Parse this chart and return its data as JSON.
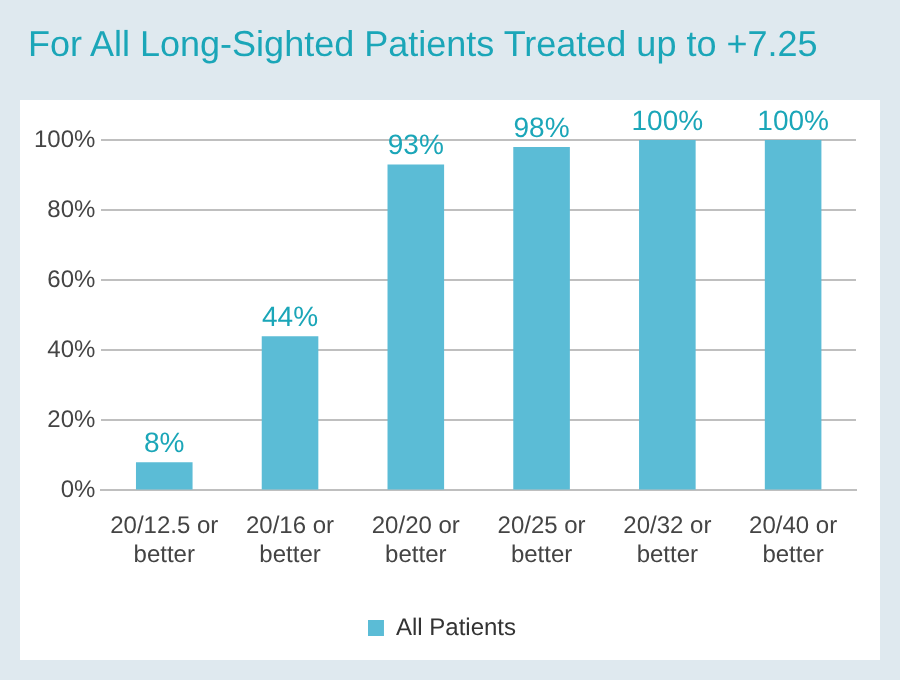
{
  "chart_data": {
    "type": "bar",
    "title": "For All Long-Sighted Patients Treated up to +7.25",
    "categories": [
      "20/12.5 or better",
      "20/16 or better",
      "20/20 or better",
      "20/25 or better",
      "20/32 or better",
      "20/40 or better"
    ],
    "series": [
      {
        "name": "All Patients",
        "color": "#5bbcd6",
        "values": [
          8,
          44,
          93,
          98,
          100,
          100
        ]
      }
    ],
    "value_labels": [
      "8%",
      "44%",
      "93%",
      "98%",
      "100%",
      "100%"
    ],
    "ylim": [
      0,
      100
    ],
    "yticks": [
      {
        "value": 0,
        "label": "0%"
      },
      {
        "value": 20,
        "label": "20%"
      },
      {
        "value": 40,
        "label": "40%"
      },
      {
        "value": 60,
        "label": "60%"
      },
      {
        "value": 80,
        "label": "80%"
      },
      {
        "value": 100,
        "label": "100%"
      }
    ],
    "grid": "y",
    "legend": "bottom"
  }
}
